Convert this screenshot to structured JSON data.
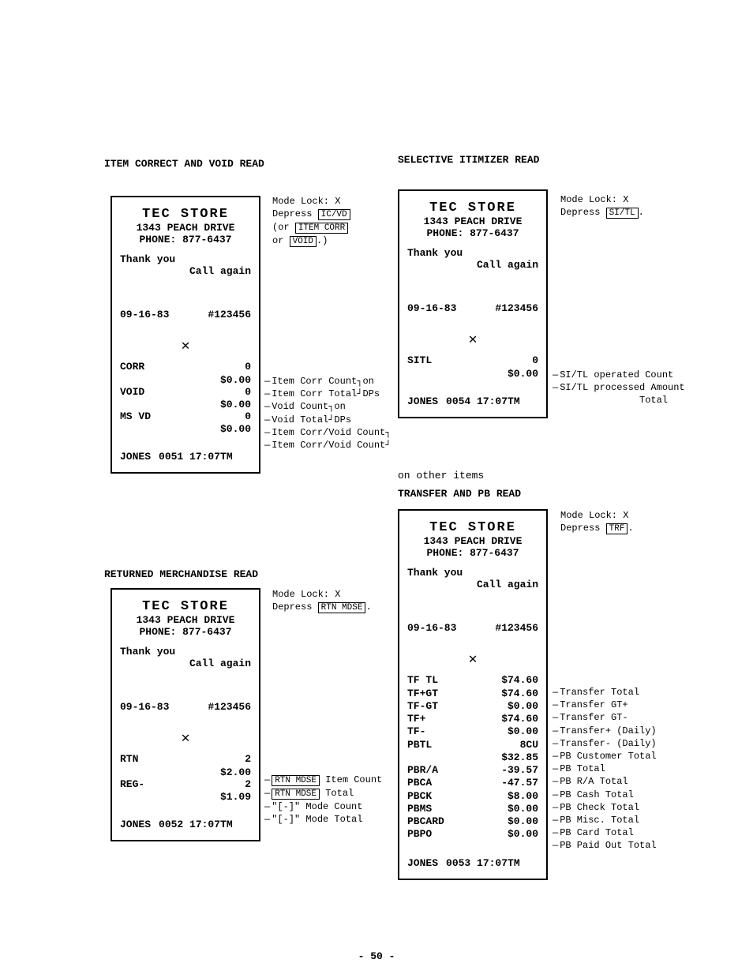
{
  "pageNumber": "- 50 -",
  "sections": {
    "s1": {
      "title": "ITEM CORRECT AND VOID READ"
    },
    "s2": {
      "title": "RETURNED MERCHANDISE READ"
    },
    "s3": {
      "title": "SELECTIVE ITIMIZER READ"
    },
    "s4_pre": "on other items",
    "s4": {
      "title": "TRANSFER AND PB READ"
    }
  },
  "storeHeader": {
    "name": "TEC STORE",
    "addr": "1343 PEACH DRIVE",
    "phone": "PHONE: 877-6437",
    "thanks": "Thank you",
    "again": "Call again"
  },
  "receipt1": {
    "date": "09-16-83",
    "num": "#123456",
    "items": [
      {
        "lbl": "CORR",
        "cnt": "0",
        "amt": "$0.00"
      },
      {
        "lbl": "VOID",
        "cnt": "0",
        "amt": "$0.00"
      },
      {
        "lbl": "MS VD",
        "cnt": "0",
        "amt": "$0.00"
      }
    ],
    "clerk": "JONES",
    "seq": "0051 17:07TM"
  },
  "notes1_top": {
    "mode": "Mode Lock: X",
    "dep": "Depress",
    "k1": "IC/VD",
    "or1": "(or",
    "k2": "ITEM CORR",
    "or2": "or",
    "k3": "VOID",
    "end": ".)"
  },
  "anno1": {
    "a": "Item Corr Count",
    "a2": "on",
    "b": "Item Corr Total",
    "b2": "DPs",
    "c": "Void Count",
    "c2": "on",
    "d": "Void Total",
    "d2": "DPs",
    "e": "Item Corr/Void Count",
    "f": "Item Corr/Void Count"
  },
  "receipt2": {
    "date": "09-16-83",
    "num": "#123456",
    "items": [
      {
        "lbl": "RTN",
        "cnt": "2",
        "amt": "$2.00"
      },
      {
        "lbl": "REG-",
        "cnt": "2",
        "amt": "$1.09"
      }
    ],
    "clerk": "JONES",
    "seq": "0052 17:07TM"
  },
  "notes2_top": {
    "mode": "Mode Lock: X",
    "dep": "Depress",
    "k1": "RTN MDSE",
    "end": "."
  },
  "anno2": {
    "a_key": "RTN MDSE",
    "a": " Item Count",
    "b_key": "RTN MDSE",
    "b": " Total",
    "c": "\"[-]\" Mode Count",
    "d": "\"[-]\" Mode Total"
  },
  "receipt3": {
    "date": "09-16-83",
    "num": "#123456",
    "items": [
      {
        "lbl": "SITL",
        "cnt": "0",
        "amt": "$0.00"
      }
    ],
    "clerk": "JONES",
    "seq": "0054 17:07TM"
  },
  "notes3_top": {
    "mode": "Mode Lock: X",
    "dep": "Depress",
    "k1": "SI/TL",
    "end": "."
  },
  "anno3": {
    "a": "SI/TL operated Count",
    "b": "SI/TL processed Amount",
    "c": "Total"
  },
  "receipt4": {
    "date": "09-16-83",
    "num": "#123456",
    "rows": [
      {
        "lbl": "TF TL",
        "val": "$74.60",
        "anno": "Transfer Total"
      },
      {
        "lbl": "TF+GT",
        "val": "$74.60",
        "anno": "Transfer GT+"
      },
      {
        "lbl": "TF-GT",
        "val": "$0.00",
        "anno": "Transfer GT-"
      },
      {
        "lbl": "TF+",
        "val": "$74.60",
        "anno": "Transfer+ (Daily)"
      },
      {
        "lbl": "TF-",
        "val": "$0.00",
        "anno": "Transfer- (Daily)"
      },
      {
        "lbl": "PBTL",
        "val": "8CU",
        "anno": "PB Customer Total"
      },
      {
        "lbl": "",
        "val": "$32.85",
        "anno": "PB Total"
      },
      {
        "lbl": "PBR/A",
        "val": "-39.57",
        "anno": "PB R/A Total"
      },
      {
        "lbl": "PBCA",
        "val": "-47.57",
        "anno": "PB Cash Total"
      },
      {
        "lbl": "PBCK",
        "val": "$8.00",
        "anno": "PB Check Total"
      },
      {
        "lbl": "PBMS",
        "val": "$0.00",
        "anno": "PB Misc. Total"
      },
      {
        "lbl": "PBCARD",
        "val": "$0.00",
        "anno": "PB Card Total"
      },
      {
        "lbl": "PBPO",
        "val": "$0.00",
        "anno": "PB Paid Out Total"
      }
    ],
    "clerk": "JONES",
    "seq": "0053 17:07TM"
  },
  "notes4_top": {
    "mode": "Mode Lock: X",
    "dep": "Depress",
    "k1": "TRF",
    "end": "."
  }
}
